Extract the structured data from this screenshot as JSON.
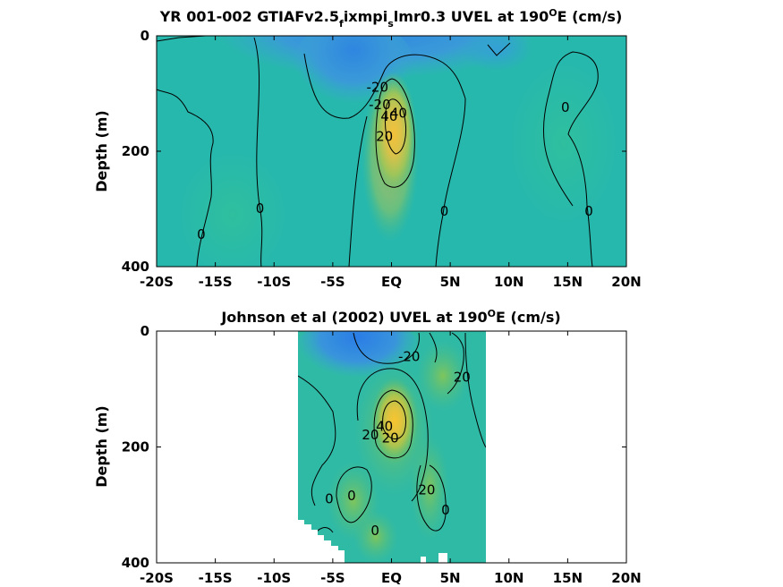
{
  "chart_data": [
    {
      "type": "heatmap",
      "title_parts": [
        "YR 001-002 GTIAFv2.5",
        "f",
        "ixmpi",
        "s",
        "lmr0.3 UVEL at 190",
        "O",
        "E (cm/s)"
      ],
      "ylabel": "Depth (m)",
      "xlim": [
        -20,
        20
      ],
      "ylim": [
        0,
        400
      ],
      "x_ticks": [
        -20,
        -15,
        -10,
        -5,
        0,
        5,
        10,
        15,
        20
      ],
      "x_tick_labels": [
        "-20S",
        "-15S",
        "-10S",
        "-5S",
        "EQ",
        "5N",
        "10N",
        "15N",
        "20N"
      ],
      "y_ticks": [
        0,
        200,
        400
      ],
      "y_tick_labels": [
        "0",
        "200",
        "400"
      ],
      "data_extent_x": [
        -20,
        20
      ],
      "core": {
        "lat": 0.3,
        "depth": 140,
        "max_cm_s": 50
      },
      "westward_min": {
        "lat": -2,
        "depth": 40,
        "min_cm_s": -25
      },
      "contour_labels": [
        {
          "text": "-20",
          "lat": -1.2,
          "depth": 90
        },
        {
          "text": "-20",
          "lat": -1.0,
          "depth": 120
        },
        {
          "text": "40",
          "lat": -0.2,
          "depth": 140
        },
        {
          "text": "20",
          "lat": -0.6,
          "depth": 175
        },
        {
          "text": "40",
          "lat": 0.6,
          "depth": 135
        },
        {
          "text": "0",
          "lat": 14.8,
          "depth": 125
        },
        {
          "text": "0",
          "lat": -11.2,
          "depth": 300
        },
        {
          "text": "0",
          "lat": -16.2,
          "depth": 345
        },
        {
          "text": "0",
          "lat": 4.5,
          "depth": 305
        },
        {
          "text": "0",
          "lat": 16.8,
          "depth": 305
        }
      ]
    },
    {
      "type": "heatmap",
      "title_parts": [
        "Johnson et al (2002) UVEL at 190",
        "O",
        "E (cm/s)"
      ],
      "ylabel": "Depth (m)",
      "xlim": [
        -20,
        20
      ],
      "ylim": [
        0,
        400
      ],
      "x_ticks": [
        -20,
        -15,
        -10,
        -5,
        0,
        5,
        10,
        15,
        20
      ],
      "x_tick_labels": [
        "-20S",
        "-15S",
        "-10S",
        "-5S",
        "EQ",
        "5N",
        "10N",
        "15N",
        "20N"
      ],
      "y_ticks": [
        0,
        200,
        400
      ],
      "y_tick_labels": [
        "0",
        "200",
        "400"
      ],
      "data_extent_x": [
        -8,
        8
      ],
      "core": {
        "lat": 0.5,
        "depth": 150,
        "max_cm_s": 50
      },
      "westward_min": {
        "lat": -1.5,
        "depth": 30,
        "min_cm_s": -30
      },
      "contour_labels": [
        {
          "text": "-20",
          "lat": 1.5,
          "depth": 45
        },
        {
          "text": "20",
          "lat": 6.0,
          "depth": 80
        },
        {
          "text": "20",
          "lat": -1.8,
          "depth": 180
        },
        {
          "text": "40",
          "lat": -0.6,
          "depth": 165
        },
        {
          "text": "20",
          "lat": -0.1,
          "depth": 185
        },
        {
          "text": "0",
          "lat": -5.3,
          "depth": 290
        },
        {
          "text": "0",
          "lat": -3.4,
          "depth": 285
        },
        {
          "text": "20",
          "lat": 3.0,
          "depth": 275
        },
        {
          "text": "0",
          "lat": 4.6,
          "depth": 310
        },
        {
          "text": "0",
          "lat": -1.4,
          "depth": 345
        }
      ]
    }
  ]
}
